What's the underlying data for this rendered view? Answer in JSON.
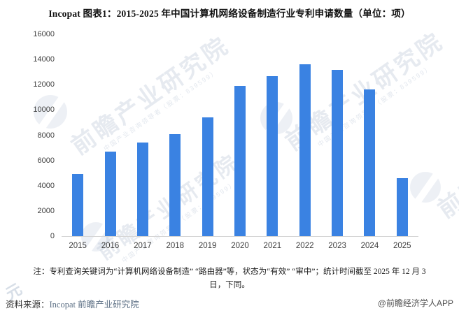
{
  "title": "Incopat 图表1：2015-2025 年中国计算机网络设备制造行业专利申请数量（单位：项）",
  "chart_data": {
    "type": "bar",
    "title": "Incopat 图表1：2015-2025 年中国计算机网络设备制造行业专利申请数量（单位：项）",
    "categories": [
      "2015",
      "2016",
      "2017",
      "2018",
      "2019",
      "2020",
      "2021",
      "2022",
      "2023",
      "2024",
      "2025"
    ],
    "values": [
      4900,
      6700,
      7400,
      8100,
      9400,
      11900,
      12700,
      13600,
      13200,
      11650,
      4600
    ],
    "xlabel": "",
    "ylabel": "",
    "ylim": [
      0,
      16000
    ],
    "y_ticks": [
      0,
      2000,
      4000,
      6000,
      8000,
      10000,
      12000,
      14000,
      16000
    ],
    "bar_color": "#3A82E2",
    "grid": false,
    "legend": false
  },
  "note": {
    "line1": "注：专利查询关键词为“计算机网络设备制造” “路由器”等，状态为“有效” “审中”；统计时间截至 2025 年 12 月 3",
    "line2": "日，下同。"
  },
  "footer": {
    "source_label": "资料来源：",
    "source_value": "Incopat 前瞻产业研究院",
    "credit": "@前瞻经济学人APP"
  },
  "watermark": {
    "text": "前瞻产业研究院",
    "subtext": "中国产业咨询领导者（股票：839599）",
    "corner_glyph": "元"
  }
}
